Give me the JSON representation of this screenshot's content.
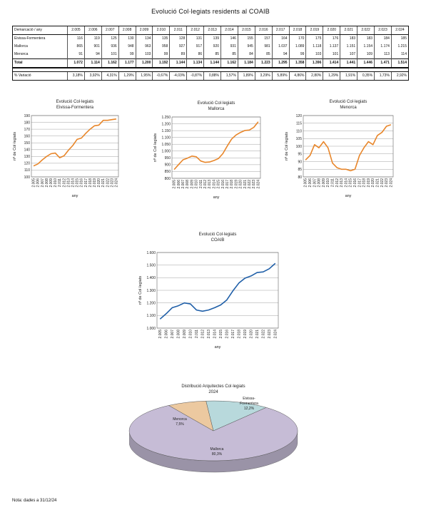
{
  "page": {
    "title": "Evolució Col·legiats residents al COAIB",
    "footnote": "Nota: dades a 31/12/24"
  },
  "table": {
    "header_label": "Demarcació / any",
    "years": [
      "2.005",
      "2.006",
      "2.007",
      "2.008",
      "2.009",
      "2.010",
      "2.011",
      "2.012",
      "2.013",
      "2.014",
      "2.015",
      "2.016",
      "2.017",
      "2.018",
      "2.019",
      "2.020",
      "2.021",
      "2.022",
      "2.023",
      "2.024"
    ],
    "rows": [
      {
        "label": "Eivissa-Formentera",
        "values": [
          "116",
          "119",
          "125",
          "130",
          "134",
          "135",
          "128",
          "131",
          "139",
          "146",
          "155",
          "157",
          "164",
          "170",
          "175",
          "176",
          "183",
          "183",
          "184",
          "185"
        ]
      },
      {
        "label": "Mallorca",
        "values": [
          "865",
          "901",
          "936",
          "948",
          "963",
          "958",
          "927",
          "917",
          "920",
          "931",
          "945",
          "981",
          "1.037",
          "1.089",
          "1.118",
          "1.137",
          "1.151",
          "1.154",
          "1.174",
          "1.215"
        ]
      },
      {
        "label": "Menorca",
        "values": [
          "91",
          "94",
          "101",
          "99",
          "103",
          "99",
          "89",
          "86",
          "85",
          "85",
          "84",
          "85",
          "94",
          "99",
          "103",
          "101",
          "107",
          "109",
          "113",
          "114"
        ]
      }
    ],
    "total": {
      "label": "Total",
      "values": [
        "1.072",
        "1.114",
        "1.162",
        "1.177",
        "1.200",
        "1.192",
        "1.144",
        "1.134",
        "1.144",
        "1.162",
        "1.184",
        "1.223",
        "1.295",
        "1.358",
        "1.396",
        "1.414",
        "1.441",
        "1.446",
        "1.471",
        "1.514"
      ]
    },
    "variation": {
      "label": "% Variació",
      "values": [
        "3,18%",
        "3,92%",
        "4,31%",
        "1,29%",
        "1,95%",
        "-0,67%",
        "-4,03%",
        "-0,87%",
        "0,88%",
        "1,57%",
        "1,89%",
        "3,29%",
        "5,89%",
        "4,86%",
        "2,80%",
        "1,29%",
        "1,91%",
        "0,35%",
        "1,73%",
        "2,92%"
      ]
    }
  },
  "chart_data": [
    {
      "type": "line",
      "title": "Evolució Col·legiats",
      "subtitle": "Eivissa-Formentera",
      "xlabel": "any",
      "ylabel": "nº de Col·legiats",
      "x": [
        "2.005",
        "2.006",
        "2.007",
        "2.008",
        "2.009",
        "2.010",
        "2.011",
        "2.012",
        "2.013",
        "2.014",
        "2.015",
        "2.016",
        "2.017",
        "2.018",
        "2.019",
        "2.020",
        "2.021",
        "2.022",
        "2.023",
        "2.024"
      ],
      "values": [
        116,
        119,
        125,
        130,
        134,
        135,
        128,
        131,
        139,
        146,
        155,
        157,
        164,
        170,
        175,
        176,
        183,
        183,
        184,
        185
      ],
      "ylim": [
        100,
        190
      ],
      "ystep": 10,
      "color": "#e8862a",
      "grid": true
    },
    {
      "type": "line",
      "title": "Evolució Col·legiats",
      "subtitle": "Mallorca",
      "xlabel": "any",
      "ylabel": "nº de Col·legiats",
      "x": [
        "2.005",
        "2.006",
        "2.007",
        "2.008",
        "2.009",
        "2.010",
        "2.011",
        "2.012",
        "2.013",
        "2.014",
        "2.015",
        "2.016",
        "2.017",
        "2.018",
        "2.019",
        "2.020",
        "2.021",
        "2.022",
        "2.023",
        "2.024"
      ],
      "values": [
        865,
        901,
        936,
        948,
        963,
        958,
        927,
        917,
        920,
        931,
        945,
        981,
        1037,
        1089,
        1118,
        1137,
        1151,
        1154,
        1174,
        1215
      ],
      "ylim": [
        800,
        1250
      ],
      "ystep": 50,
      "color": "#e8862a",
      "grid": true
    },
    {
      "type": "line",
      "title": "Evolució Col·legiats",
      "subtitle": "Menorca",
      "xlabel": "any",
      "ylabel": "nº de Col·legiats",
      "x": [
        "2.005",
        "2.006",
        "2.007",
        "2.008",
        "2.009",
        "2.010",
        "2.011",
        "2.012",
        "2.013",
        "2.014",
        "2.015",
        "2.016",
        "2.017",
        "2.018",
        "2.019",
        "2.020",
        "2.021",
        "2.022",
        "2.023",
        "2.024"
      ],
      "values": [
        91,
        94,
        101,
        99,
        103,
        99,
        89,
        86,
        85,
        85,
        84,
        85,
        94,
        99,
        103,
        101,
        107,
        109,
        113,
        114
      ],
      "ylim": [
        80,
        120
      ],
      "ystep": 5,
      "color": "#e8862a",
      "grid": true
    },
    {
      "type": "line",
      "title": "Evolució Col·legiats",
      "subtitle": "COAIB",
      "xlabel": "any",
      "ylabel": "nº de Col·legiats",
      "x": [
        "2.005",
        "2.006",
        "2.007",
        "2.008",
        "2.009",
        "2.010",
        "2.011",
        "2.012",
        "2.013",
        "2.014",
        "2.015",
        "2.016",
        "2.017",
        "2.018",
        "2.019",
        "2.020",
        "2.021",
        "2.022",
        "2.023",
        "2.024"
      ],
      "values": [
        1072,
        1114,
        1162,
        1177,
        1200,
        1192,
        1144,
        1134,
        1144,
        1162,
        1184,
        1223,
        1295,
        1358,
        1396,
        1414,
        1441,
        1446,
        1471,
        1514
      ],
      "ylim": [
        1000,
        1600
      ],
      "ystep": 100,
      "color": "#1f5fa8",
      "grid": true
    },
    {
      "type": "pie",
      "title": "Distribució Arquitectes Col·legiats",
      "subtitle": "2024",
      "slices": [
        {
          "name": "Eivissa-Formentera",
          "value": 12.2,
          "label": "12,2%",
          "color": "#b8d9dc"
        },
        {
          "name": "Mallorca",
          "value": 80.3,
          "label": "80,3%",
          "color": "#c6bcd6"
        },
        {
          "name": "Menorca",
          "value": 7.5,
          "label": "7,5%",
          "color": "#ecc9a0"
        }
      ]
    }
  ]
}
